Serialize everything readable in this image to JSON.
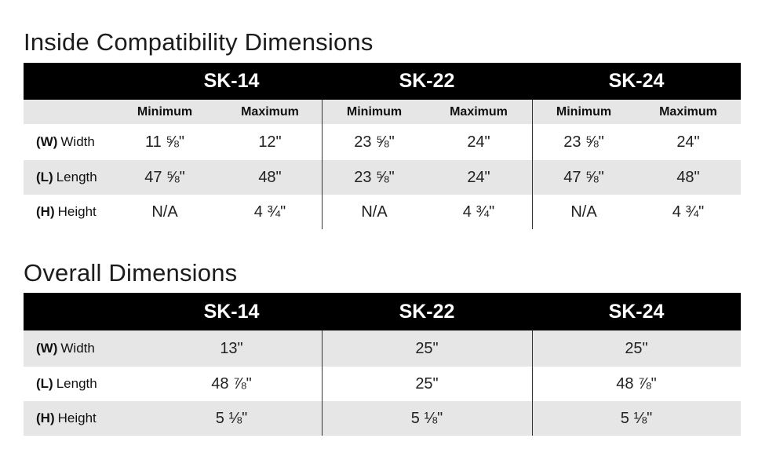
{
  "inside": {
    "title": "Inside Compatibility Dimensions",
    "models": [
      "SK-14",
      "SK-22",
      "SK-24"
    ],
    "subheaders": [
      "Minimum",
      "Maximum"
    ],
    "rows": [
      {
        "abbr": "(W)",
        "name": "Width",
        "values": [
          "11 ⅝\"",
          "12\"",
          "23 ⅝\"",
          "24\"",
          "23  ⅝\"",
          "24\""
        ]
      },
      {
        "abbr": "(L)",
        "name": "Length",
        "values": [
          "47 ⅝\"",
          "48\"",
          "23 ⅝\"",
          "24\"",
          "47 ⅝\"",
          "48\""
        ]
      },
      {
        "abbr": "(H)",
        "name": "Height",
        "values": [
          "N/A",
          "4 ¾\"",
          "N/A",
          "4 ¾\"",
          "N/A",
          "4 ¾\""
        ]
      }
    ]
  },
  "overall": {
    "title": "Overall Dimensions",
    "models": [
      "SK-14",
      "SK-22",
      "SK-24"
    ],
    "rows": [
      {
        "abbr": "(W)",
        "name": "Width",
        "values": [
          "13\"",
          "25\"",
          "25\""
        ]
      },
      {
        "abbr": "(L)",
        "name": "Length",
        "values": [
          "48 ⅞\"",
          "25\"",
          "48 ⅞\""
        ]
      },
      {
        "abbr": "(H)",
        "name": "Height",
        "values": [
          "5 ⅛\"",
          "5 ⅛\"",
          "5 ⅛\""
        ]
      }
    ]
  }
}
